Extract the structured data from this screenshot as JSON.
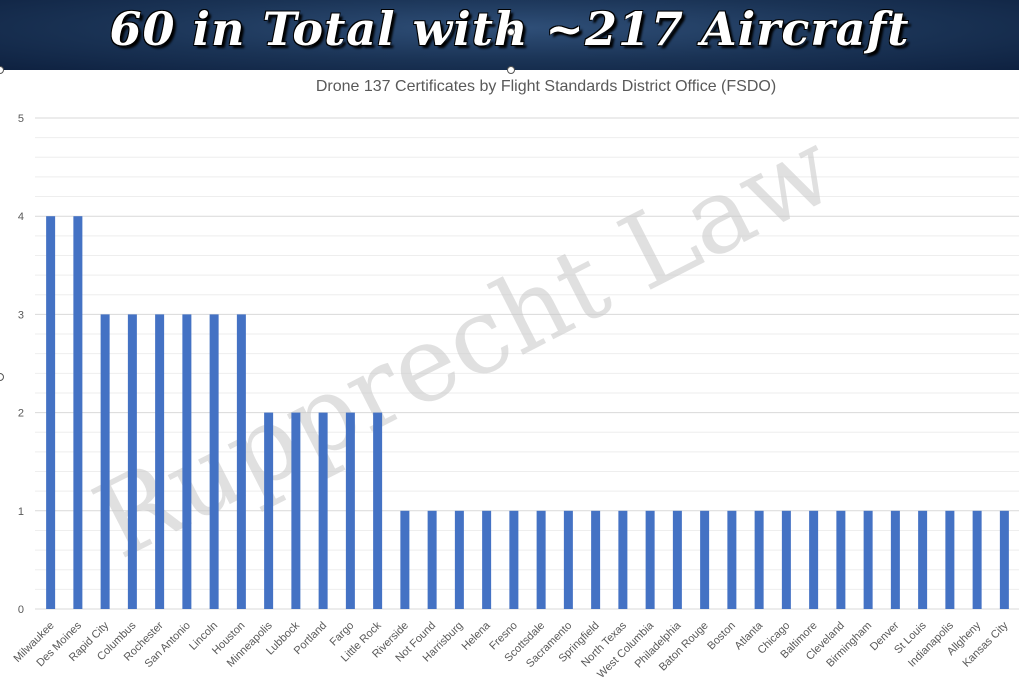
{
  "banner": {
    "title": "60 in Total with ~217 Aircraft"
  },
  "watermark": "Rupprecht Law",
  "chart_data": {
    "type": "bar",
    "title": "Drone 137 Certificates by Flight Standards District Office (FSDO)",
    "xlabel": "",
    "ylabel": "",
    "ylim": [
      0,
      5
    ],
    "yticks": [
      0,
      1,
      2,
      3,
      4,
      5
    ],
    "grid": true,
    "colors": {
      "bar": "#4472c4",
      "gridline": "#d9d9d9",
      "banner": "#1a3355"
    },
    "categories": [
      "Milwaukee",
      "Des Moines",
      "Rapid City",
      "Columbus",
      "Rochester",
      "San Antonio",
      "Lincoln",
      "Houston",
      "Minneapolis",
      "Lubbock",
      "Portland",
      "Fargo",
      "Little Rock",
      "Riverside",
      "Not Found",
      "Harrisburg",
      "Helena",
      "Fresno",
      "Scottsdale",
      "Sacramento",
      "Springfield",
      "North Texas",
      "West Columbia",
      "Philadelphia",
      "Baton Rouge",
      "Boston",
      "Atlanta",
      "Chicago",
      "Baltimore",
      "Cleveland",
      "Birmingham",
      "Denver",
      "St Louis",
      "Indianapolis",
      "Allgheny",
      "Kansas City"
    ],
    "values": [
      4,
      4,
      3,
      3,
      3,
      3,
      3,
      3,
      2,
      2,
      2,
      2,
      2,
      1,
      1,
      1,
      1,
      1,
      1,
      1,
      1,
      1,
      1,
      1,
      1,
      1,
      1,
      1,
      1,
      1,
      1,
      1,
      1,
      1,
      1,
      1
    ]
  }
}
